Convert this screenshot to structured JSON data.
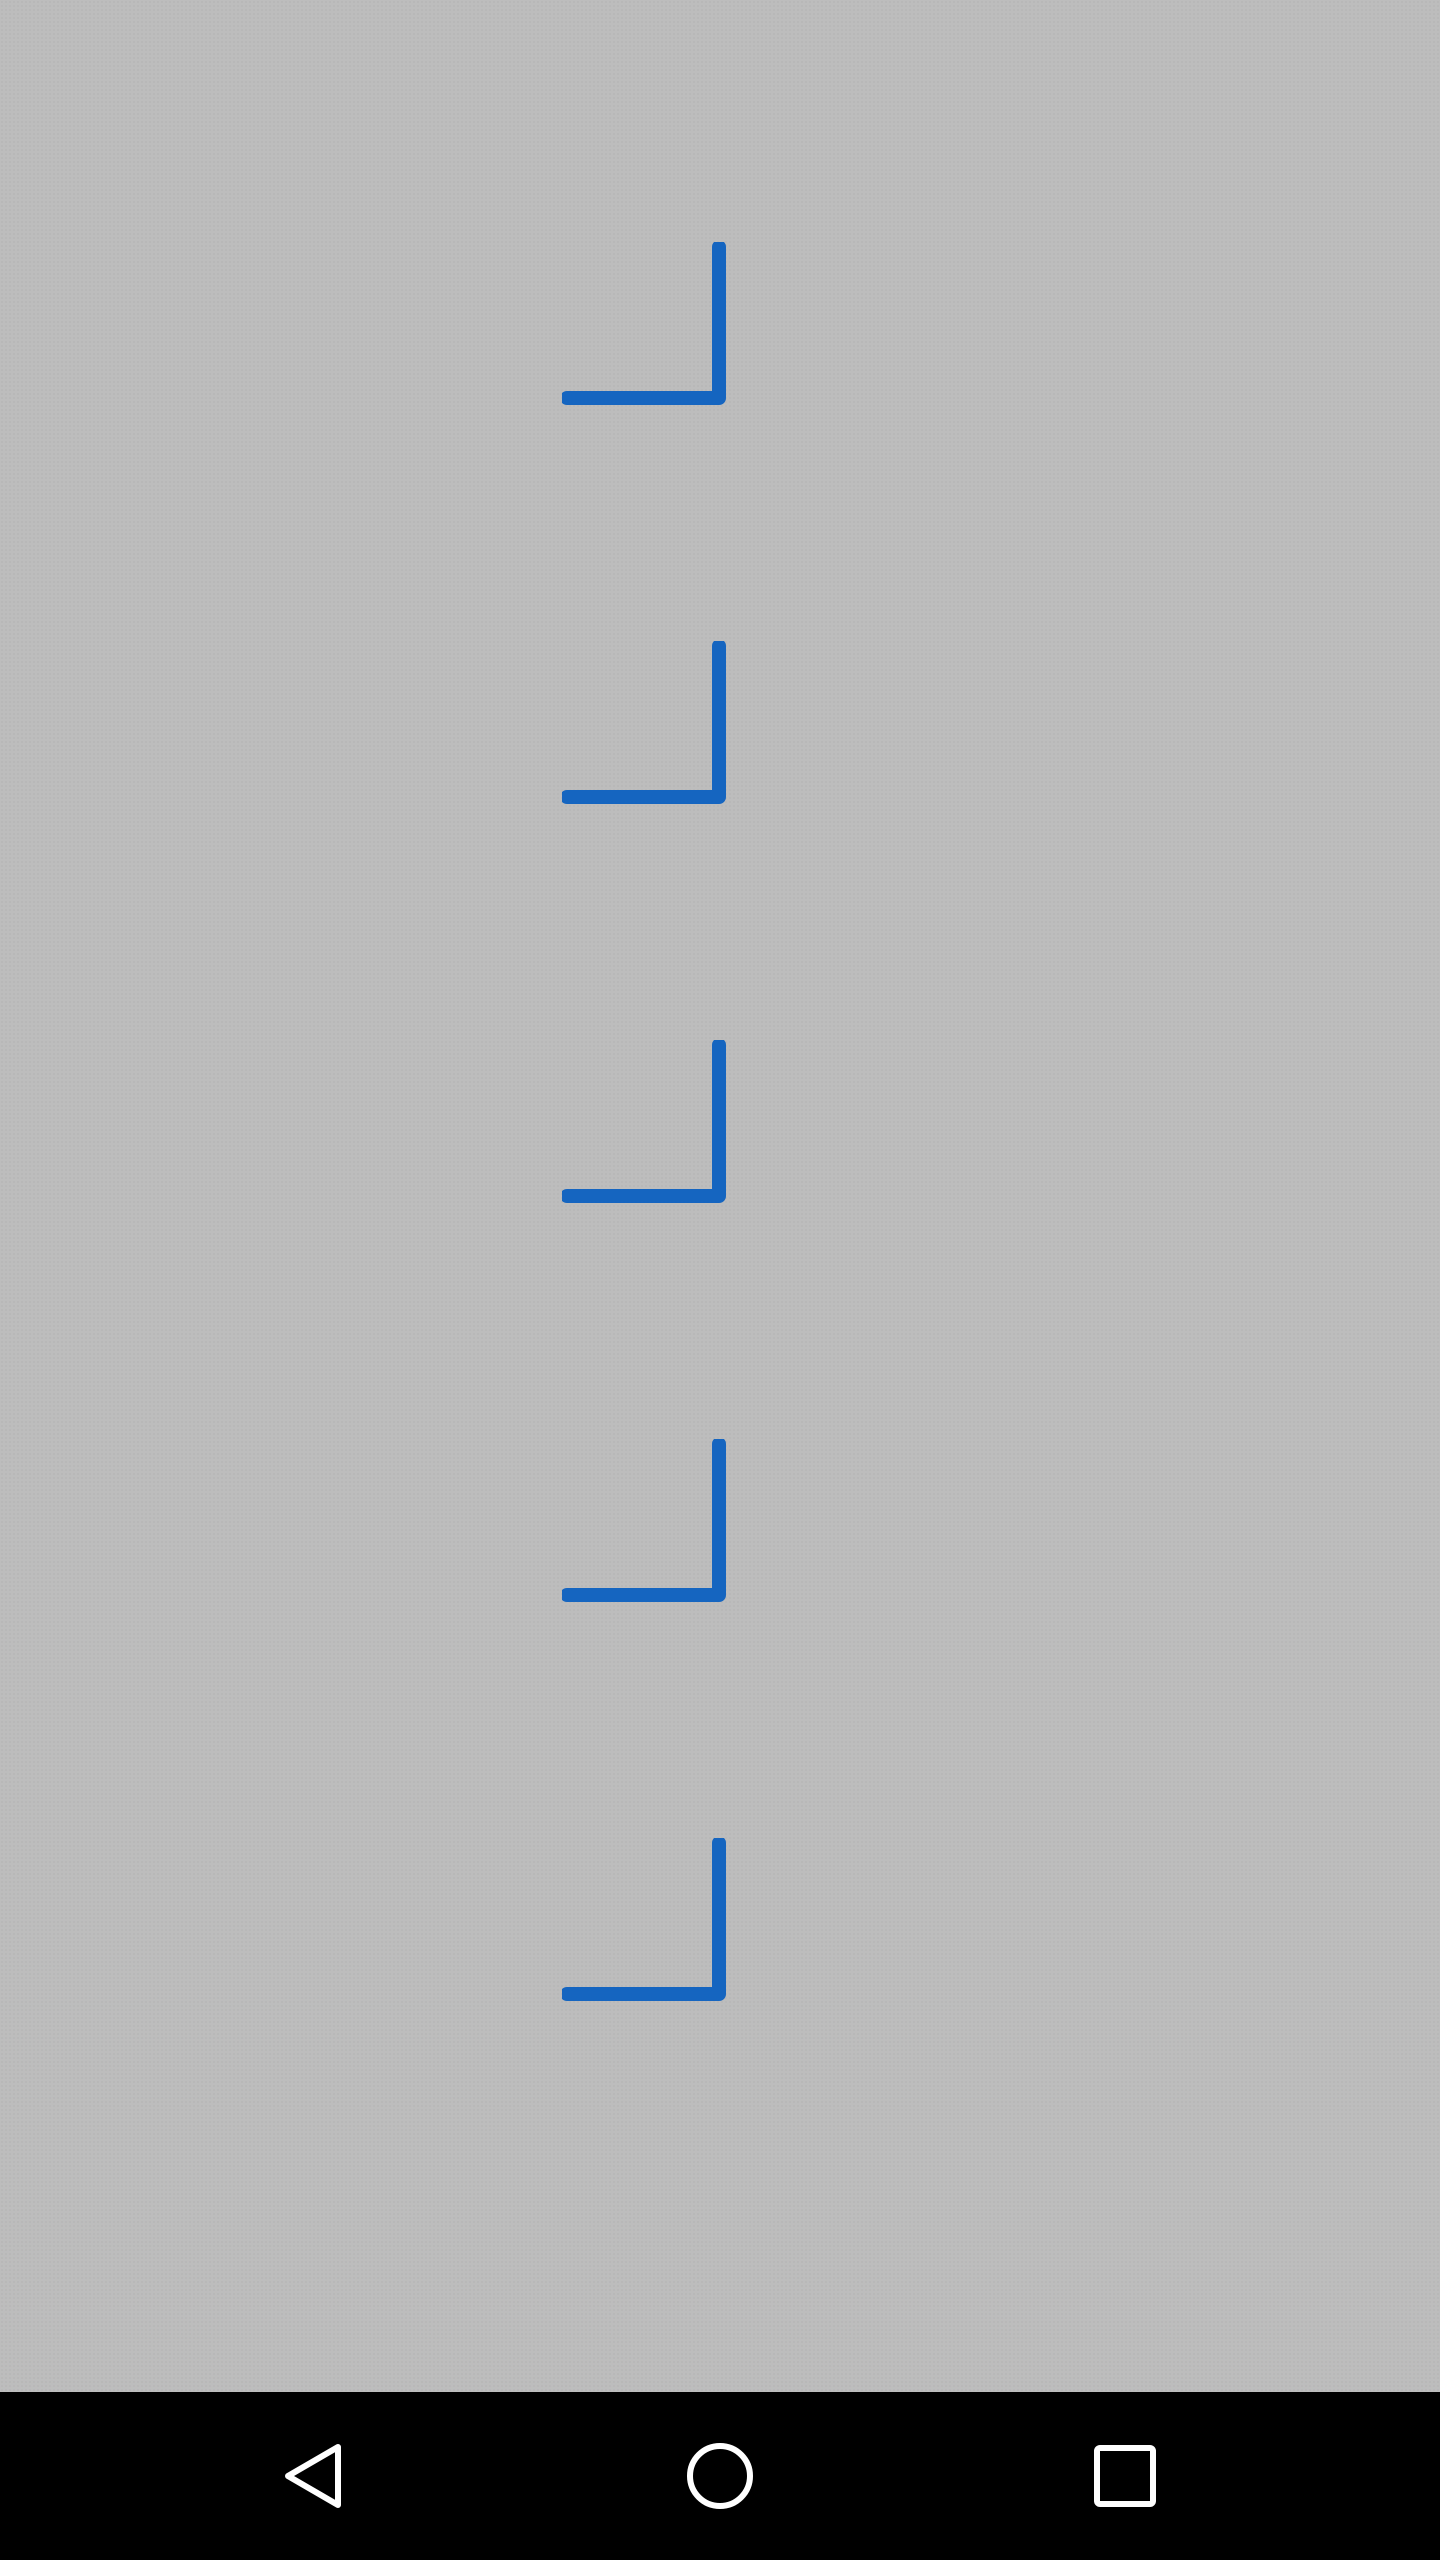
{
  "theme": {
    "background": "#bdbdbd",
    "accent": "#1565c0",
    "nav_background": "#000000",
    "nav_icon_color": "#ffffff"
  },
  "marks": [
    {
      "icon": "corner-bracket-icon"
    },
    {
      "icon": "corner-bracket-icon"
    },
    {
      "icon": "corner-bracket-icon"
    },
    {
      "icon": "corner-bracket-icon"
    },
    {
      "icon": "corner-bracket-icon"
    }
  ],
  "nav_bar": {
    "buttons": [
      {
        "icon": "back-icon"
      },
      {
        "icon": "home-icon"
      },
      {
        "icon": "recents-icon"
      }
    ]
  }
}
